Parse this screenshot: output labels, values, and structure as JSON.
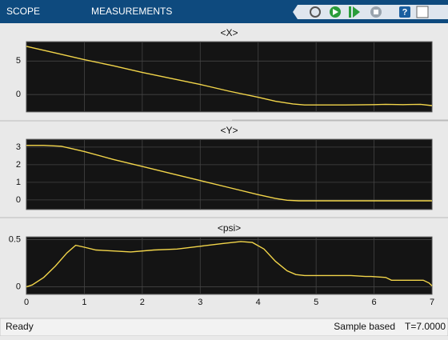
{
  "toolbar": {
    "tabs": [
      "SCOPE",
      "MEASUREMENTS"
    ]
  },
  "chart_data": [
    {
      "type": "line",
      "title": "<X>",
      "color": "#f2d54a",
      "grid": true,
      "x": [
        0,
        0.5,
        1,
        1.5,
        2,
        2.5,
        3,
        3.5,
        4,
        4.3,
        4.6,
        4.8,
        5,
        5.5,
        6,
        6.2,
        6.5,
        6.8,
        7
      ],
      "values": [
        7.2,
        6.2,
        5.2,
        4.3,
        3.3,
        2.4,
        1.5,
        0.5,
        -0.4,
        -1.0,
        -1.4,
        -1.55,
        -1.55,
        -1.55,
        -1.5,
        -1.45,
        -1.5,
        -1.45,
        -1.65
      ],
      "xlim": [
        0,
        7
      ],
      "xticks": [
        0,
        1,
        2,
        3,
        4,
        5,
        6,
        7
      ],
      "ylim": [
        -2.6,
        7.9
      ],
      "yticks": [
        0,
        5
      ]
    },
    {
      "type": "line",
      "title": "<Y>",
      "color": "#f2d54a",
      "grid": true,
      "x": [
        0,
        0.3,
        0.6,
        0.8,
        1,
        1.5,
        2,
        2.5,
        3,
        3.5,
        4,
        4.3,
        4.5,
        4.7,
        5,
        6,
        7
      ],
      "values": [
        3.1,
        3.1,
        3.05,
        2.9,
        2.75,
        2.3,
        1.9,
        1.5,
        1.1,
        0.7,
        0.3,
        0.08,
        -0.02,
        -0.05,
        -0.05,
        -0.05,
        -0.05
      ],
      "xlim": [
        0,
        7
      ],
      "xticks": [
        0,
        1,
        2,
        3,
        4,
        5,
        6,
        7
      ],
      "ylim": [
        -0.55,
        3.45
      ],
      "yticks": [
        0,
        1,
        2,
        3
      ]
    },
    {
      "type": "line",
      "title": "<psi>",
      "color": "#f2d54a",
      "grid": true,
      "x": [
        0,
        0.1,
        0.3,
        0.5,
        0.7,
        0.85,
        1,
        1.2,
        1.5,
        1.8,
        2.2,
        2.6,
        3,
        3.4,
        3.7,
        3.9,
        4.1,
        4.3,
        4.5,
        4.65,
        4.8,
        5.2,
        5.6,
        5.85,
        5.95,
        6.2,
        6.3,
        6.5,
        6.85,
        6.95,
        7
      ],
      "values": [
        0,
        0.02,
        0.1,
        0.22,
        0.36,
        0.44,
        0.42,
        0.39,
        0.38,
        0.37,
        0.39,
        0.4,
        0.43,
        0.46,
        0.48,
        0.47,
        0.4,
        0.27,
        0.17,
        0.13,
        0.12,
        0.12,
        0.12,
        0.11,
        0.11,
        0.1,
        0.07,
        0.07,
        0.07,
        0.04,
        0.01
      ],
      "xlim": [
        0,
        7
      ],
      "xticks": [
        0,
        1,
        2,
        3,
        4,
        5,
        6,
        7
      ],
      "ylim": [
        -0.08,
        0.53
      ],
      "yticks": [
        0,
        0.5
      ],
      "show_xtick_labels": true
    }
  ],
  "status": {
    "state": "Ready",
    "mode": "Sample based",
    "time": "T=7.0000"
  }
}
